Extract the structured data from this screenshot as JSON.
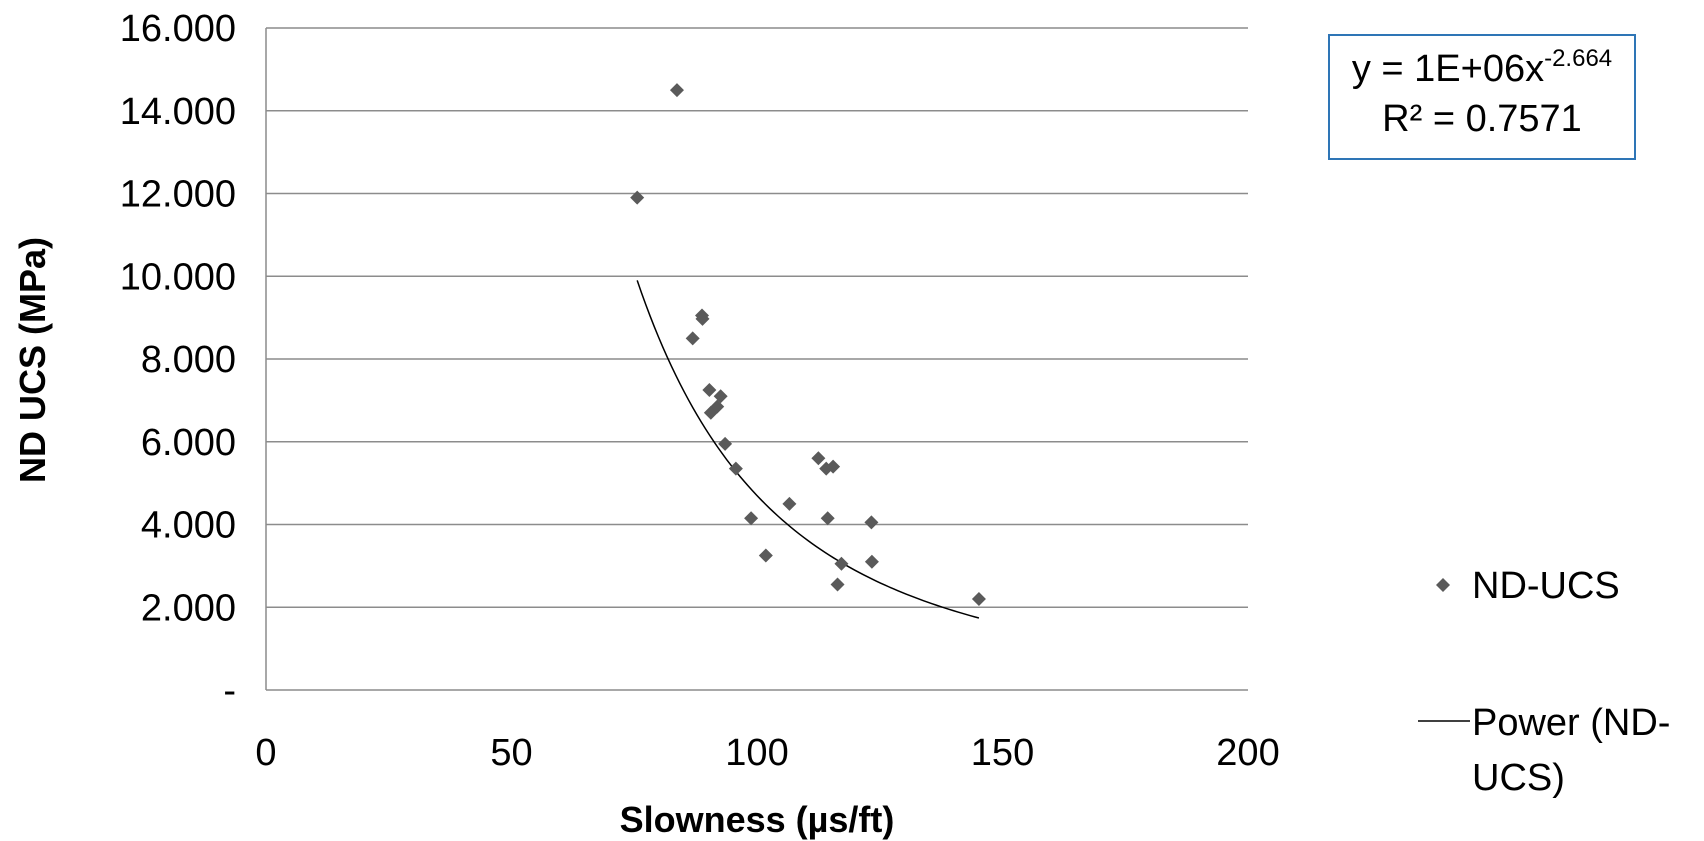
{
  "chart_data": {
    "type": "scatter",
    "title": "",
    "xlabel": "Slowness (µs/ft)",
    "ylabel": "ND UCS (MPa)",
    "xlim": [
      0,
      200
    ],
    "ylim": [
      0,
      16
    ],
    "x_ticks": [
      0,
      50,
      100,
      150,
      200
    ],
    "x_tick_labels": [
      "0",
      "50",
      "100",
      "150",
      "200"
    ],
    "y_ticks": [
      0,
      2,
      4,
      6,
      8,
      10,
      12,
      14,
      16
    ],
    "y_tick_labels": [
      "-",
      "2.000",
      "4.000",
      "6.000",
      "8.000",
      "10.000",
      "12.000",
      "14.000",
      "16.000"
    ],
    "grid": "horizontal",
    "legend_position": "right",
    "colors": {
      "points": "#5a5a5a",
      "trendline": "#000000",
      "gridline": "#8c8c8c",
      "equation_border": "#2e75b6"
    },
    "series": [
      {
        "name": "ND-UCS",
        "marker": "diamond",
        "points": [
          [
            75.6,
            11.9
          ],
          [
            83.7,
            14.5
          ],
          [
            86.9,
            8.5
          ],
          [
            88.8,
            9.05
          ],
          [
            88.9,
            8.97
          ],
          [
            90.3,
            7.25
          ],
          [
            90.6,
            6.7
          ],
          [
            91.9,
            6.85
          ],
          [
            92.6,
            7.1
          ],
          [
            93.5,
            5.95
          ],
          [
            95.7,
            5.35
          ],
          [
            98.8,
            4.15
          ],
          [
            101.8,
            3.25
          ],
          [
            106.6,
            4.5
          ],
          [
            112.5,
            5.6
          ],
          [
            114.1,
            5.35
          ],
          [
            114.4,
            4.15
          ],
          [
            115.5,
            5.4
          ],
          [
            116.4,
            2.55
          ],
          [
            117.2,
            3.05
          ],
          [
            123.3,
            4.05
          ],
          [
            123.4,
            3.1
          ],
          [
            145.2,
            2.2
          ]
        ]
      },
      {
        "name": "Power (ND-UCS)",
        "type": "trendline",
        "equation": {
          "coefficient": 1000000,
          "exponent": -2.664
        },
        "x_range": [
          75.6,
          145.2
        ]
      }
    ],
    "annotation": {
      "equation_main": "y = 1E+06x",
      "equation_exponent": "-2.664",
      "r_squared": "R² = 0.7571"
    },
    "legend": {
      "scatter_label": "ND-UCS",
      "trend_label_line1": "Power (ND-",
      "trend_label_line2": "UCS)"
    }
  }
}
